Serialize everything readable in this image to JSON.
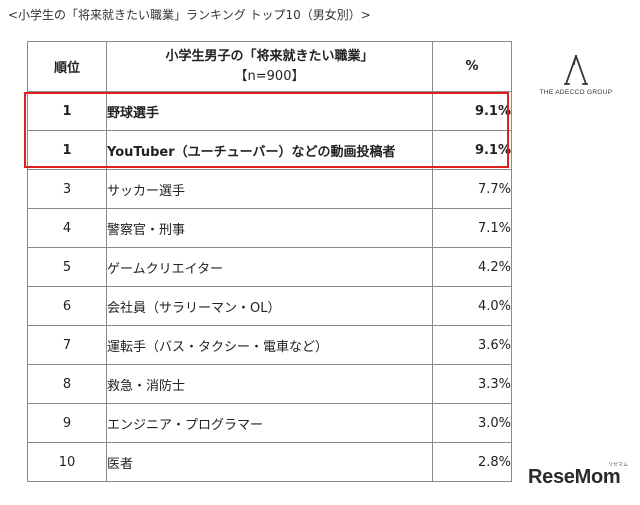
{
  "caption": "<小学生の「将来就きたい職業」ランキング トップ10（男女別）>",
  "table": {
    "headers": {
      "rank": "順位",
      "job_title": "小学生男子の「将来就きたい職業」",
      "job_subtitle": "【n=900】",
      "percent": "%"
    },
    "rows": [
      {
        "rank": "1",
        "job": "野球選手",
        "percent": "9.1%",
        "highlight": true
      },
      {
        "rank": "1",
        "job": "YouTuber（ユーチューバー）などの動画投稿者",
        "percent": "9.1%",
        "highlight": true
      },
      {
        "rank": "3",
        "job": "サッカー選手",
        "percent": "7.7%",
        "highlight": false
      },
      {
        "rank": "4",
        "job": "警察官・刑事",
        "percent": "7.1%",
        "highlight": false
      },
      {
        "rank": "5",
        "job": "ゲームクリエイター",
        "percent": "4.2%",
        "highlight": false
      },
      {
        "rank": "6",
        "job": "会社員（サラリーマン・OL）",
        "percent": "4.0%",
        "highlight": false
      },
      {
        "rank": "7",
        "job": "運転手（バス・タクシー・電車など）",
        "percent": "3.6%",
        "highlight": false
      },
      {
        "rank": "8",
        "job": "救急・消防士",
        "percent": "3.3%",
        "highlight": false
      },
      {
        "rank": "9",
        "job": "エンジニア・プログラマー",
        "percent": "3.0%",
        "highlight": false
      },
      {
        "rank": "10",
        "job": "医者",
        "percent": "2.8%",
        "highlight": false
      }
    ]
  },
  "logos": {
    "adecco_text": "THE ADECCO GROUP",
    "resemom_text": "ReseMom",
    "resemom_small": "リセマム"
  },
  "colors": {
    "highlight_border": "#e0201f",
    "table_border": "#8a8a8a"
  }
}
